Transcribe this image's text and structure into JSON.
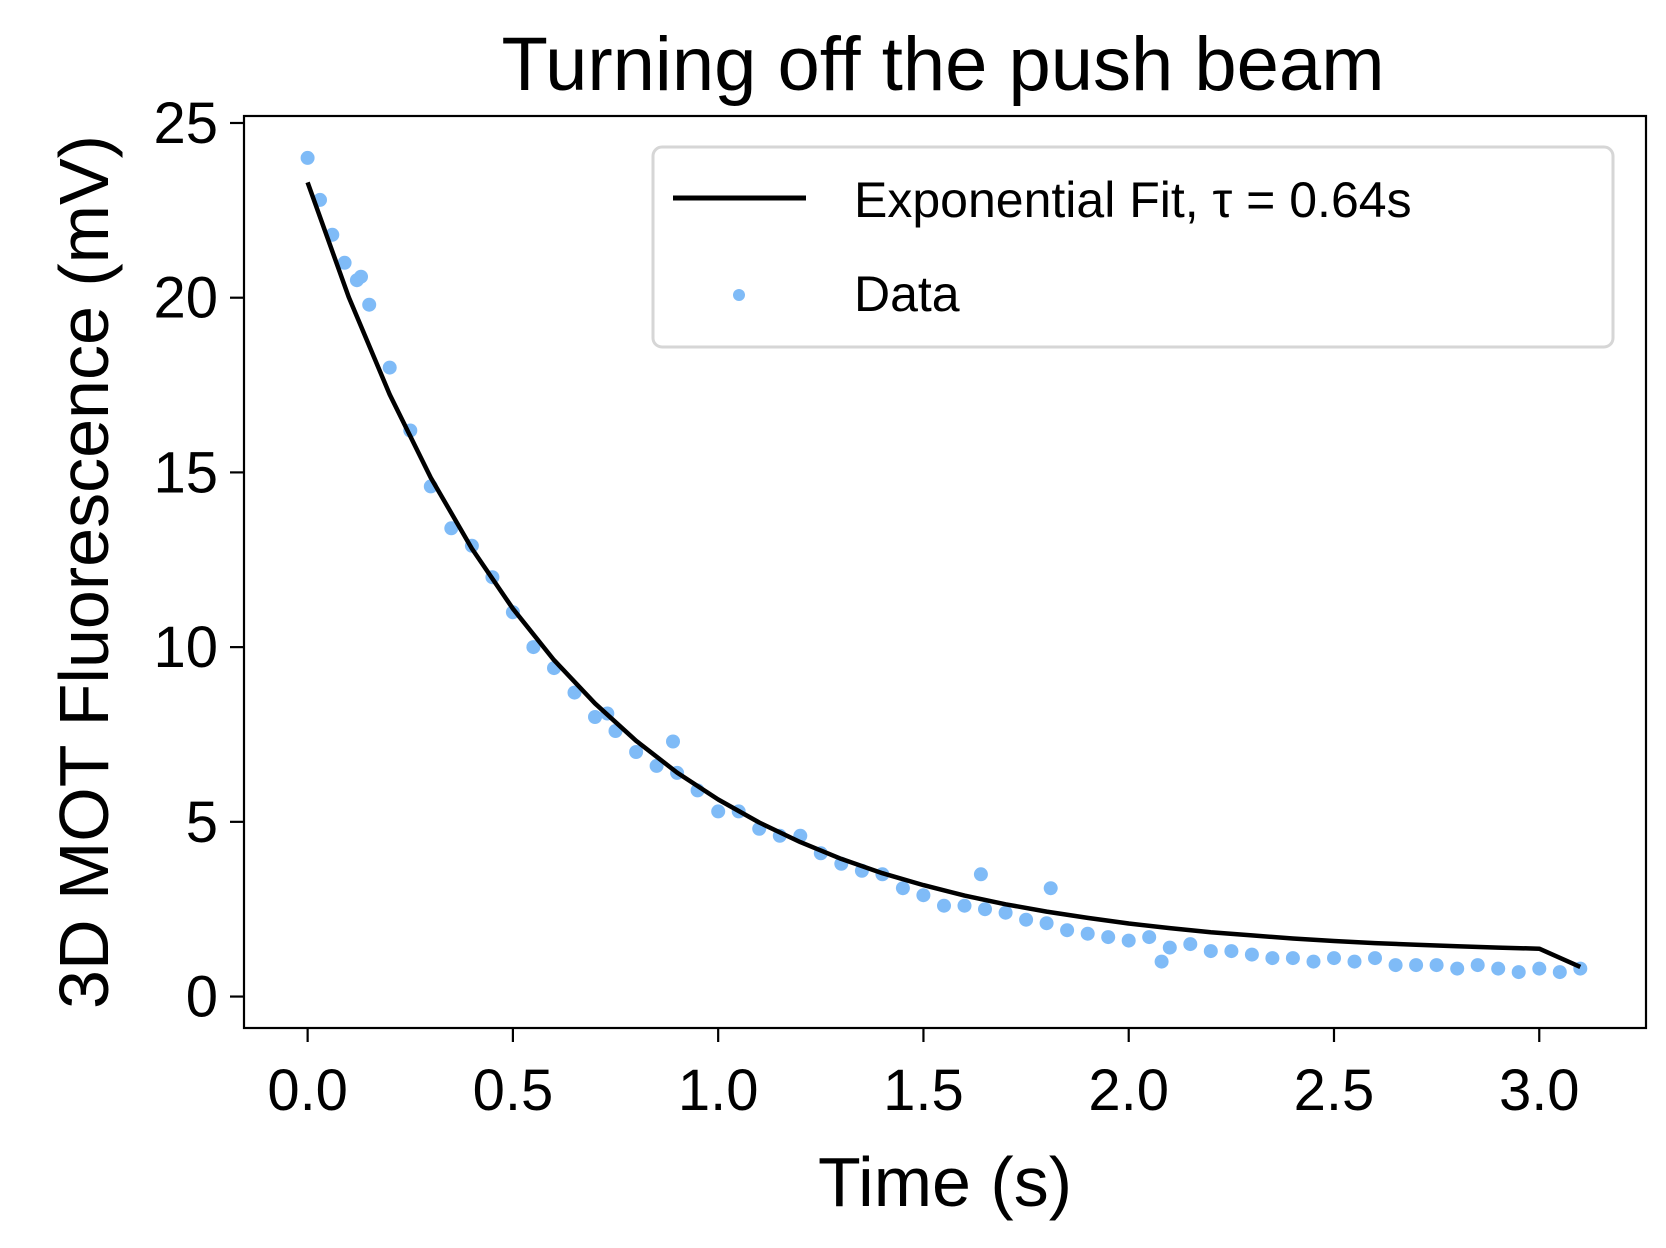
{
  "chart_data": {
    "type": "scatter",
    "title": "Turning off the push beam",
    "xlabel": "Time (s)",
    "ylabel": "3D MOT Fluorescence (mV)",
    "xlim": [
      -0.155,
      3.26
    ],
    "ylim": [
      -0.9,
      25.2
    ],
    "xticks": [
      "0.0",
      "0.5",
      "1.0",
      "1.5",
      "2.0",
      "2.5",
      "3.0"
    ],
    "xtick_values": [
      0,
      0.5,
      1.0,
      1.5,
      2.0,
      2.5,
      3.0
    ],
    "yticks": [
      "0",
      "5",
      "10",
      "15",
      "20",
      "25"
    ],
    "ytick_values": [
      0,
      5,
      10,
      15,
      20,
      25
    ],
    "grid": false,
    "legend_position": "top-right",
    "legend": [
      {
        "label": "Exponential Fit, τ = 0.64s",
        "marker": "line",
        "color": "#000000"
      },
      {
        "label": "Data",
        "marker": "dot",
        "color": "#7fbbf7"
      }
    ],
    "series": [
      {
        "name": "Exponential Fit, τ = 0.64s",
        "kind": "line",
        "color": "#000000",
        "x": [
          0.0,
          0.1,
          0.2,
          0.3,
          0.4,
          0.5,
          0.6,
          0.7,
          0.8,
          0.9,
          1.0,
          1.1,
          1.2,
          1.3,
          1.4,
          1.5,
          1.6,
          1.7,
          1.8,
          1.9,
          2.0,
          2.1,
          2.2,
          2.3,
          2.4,
          2.5,
          2.6,
          2.7,
          2.8,
          2.9,
          3.0,
          3.1
        ],
        "y": [
          23.3,
          20.02,
          17.23,
          14.85,
          12.82,
          11.1,
          9.63,
          8.39,
          7.32,
          6.41,
          5.64,
          4.98,
          4.42,
          3.94,
          3.53,
          3.19,
          2.89,
          2.64,
          2.43,
          2.25,
          2.09,
          1.96,
          1.84,
          1.75,
          1.66,
          1.59,
          1.53,
          1.48,
          1.44,
          1.4,
          1.37,
          0.85
        ]
      },
      {
        "name": "Data",
        "kind": "scatter",
        "color": "#7fbbf7",
        "x": [
          0.0,
          0.03,
          0.06,
          0.09,
          0.12,
          0.13,
          0.15,
          0.2,
          0.25,
          0.3,
          0.35,
          0.4,
          0.45,
          0.5,
          0.55,
          0.6,
          0.65,
          0.7,
          0.73,
          0.75,
          0.8,
          0.85,
          0.89,
          0.9,
          0.95,
          1.0,
          1.05,
          1.1,
          1.15,
          1.2,
          1.25,
          1.3,
          1.35,
          1.4,
          1.45,
          1.5,
          1.55,
          1.6,
          1.64,
          1.65,
          1.7,
          1.75,
          1.8,
          1.81,
          1.85,
          1.9,
          1.95,
          2.0,
          2.05,
          2.08,
          2.1,
          2.15,
          2.2,
          2.25,
          2.3,
          2.35,
          2.4,
          2.45,
          2.5,
          2.55,
          2.6,
          2.65,
          2.7,
          2.75,
          2.8,
          2.85,
          2.9,
          2.95,
          3.0,
          3.05,
          3.1
        ],
        "y": [
          24.0,
          22.8,
          21.8,
          21.0,
          20.5,
          20.6,
          19.8,
          18.0,
          16.2,
          14.6,
          13.4,
          12.9,
          12.0,
          11.0,
          10.0,
          9.4,
          8.7,
          8.0,
          8.1,
          7.6,
          7.0,
          6.6,
          7.3,
          6.4,
          5.9,
          5.3,
          5.3,
          4.8,
          4.6,
          4.6,
          4.1,
          3.8,
          3.6,
          3.5,
          3.1,
          2.9,
          2.6,
          2.6,
          3.5,
          2.5,
          2.4,
          2.2,
          2.1,
          3.1,
          1.9,
          1.8,
          1.7,
          1.6,
          1.7,
          1.0,
          1.4,
          1.5,
          1.3,
          1.3,
          1.2,
          1.1,
          1.1,
          1.0,
          1.1,
          1.0,
          1.1,
          0.9,
          0.9,
          0.9,
          0.8,
          0.9,
          0.8,
          0.7,
          0.8,
          0.7,
          0.8
        ]
      }
    ]
  }
}
